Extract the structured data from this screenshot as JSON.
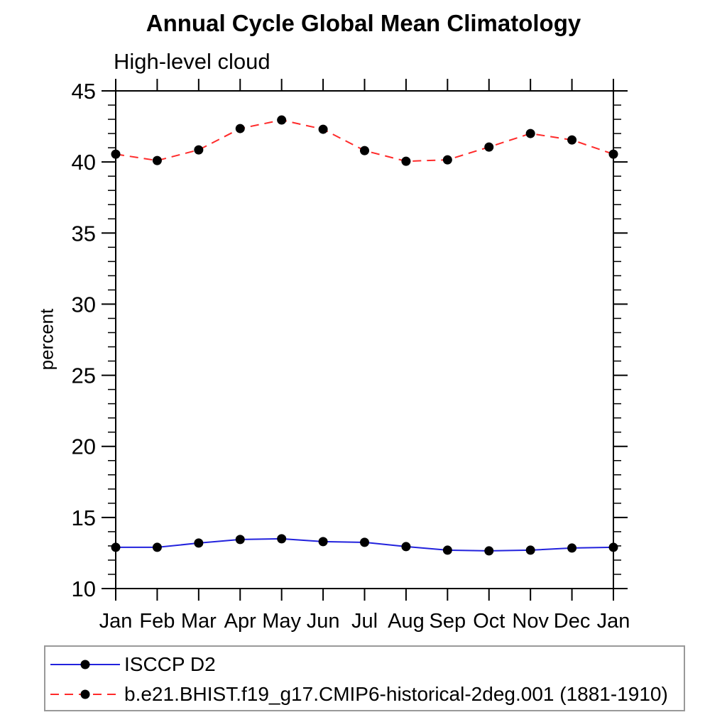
{
  "page": {
    "background": "#ffffff"
  },
  "chart_data": {
    "type": "line",
    "title": "Annual Cycle Global Mean Climatology",
    "subtitle": "High-level cloud",
    "ylabel": "percent",
    "xlabel": "",
    "ylim": [
      10,
      45
    ],
    "y_major_step": 5,
    "y_minor_step": 1,
    "grid": false,
    "legend_position": "bottom-left",
    "axis_color": "#000000",
    "marker": {
      "shape": "circle",
      "color": "#000000",
      "radius": 6.5
    },
    "categories": [
      "Jan",
      "Feb",
      "Mar",
      "Apr",
      "May",
      "Jun",
      "Jul",
      "Aug",
      "Sep",
      "Oct",
      "Nov",
      "Dec",
      "Jan"
    ],
    "series": [
      {
        "name": "ISCCP D2",
        "color": "#2222dd",
        "line_style": "solid",
        "values": [
          12.9,
          12.9,
          13.2,
          13.45,
          13.5,
          13.3,
          13.25,
          12.95,
          12.7,
          12.65,
          12.7,
          12.85,
          12.9
        ]
      },
      {
        "name": "b.e21.BHIST.f19_g17.CMIP6-historical-2deg.001 (1881-1910)",
        "color": "#ff2a2a",
        "line_style": "dashed",
        "values": [
          40.55,
          40.1,
          40.85,
          42.35,
          42.95,
          42.3,
          40.8,
          40.05,
          40.15,
          41.05,
          42.0,
          41.55,
          40.55
        ]
      }
    ]
  },
  "legend": {
    "border_color": "#999999"
  }
}
